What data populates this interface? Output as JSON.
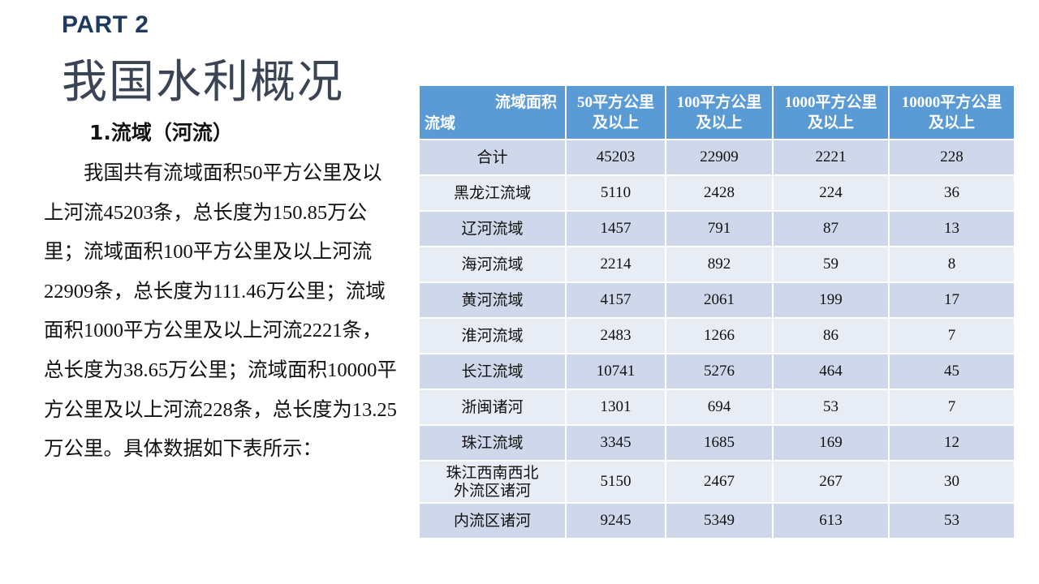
{
  "header": {
    "part_label": "PART 2",
    "title": "我国水利概况"
  },
  "section": {
    "heading": "1.流域（河流）",
    "paragraph": "我国共有流域面积50平方公里及以上河流45203条，总长度为150.85万公里；流域面积100平方公里及以上河流22909条，总长度为111.46万公里；流域面积1000平方公里及以上河流2221条，总长度为38.65万公里；流域面积10000平方公里及以上河流228条，总长度为13.25万公里。具体数据如下表所示："
  },
  "colors": {
    "header_bg": "#5b9bd5",
    "row_odd_bg": "#cfd7ea",
    "row_even_bg": "#e8ecf5",
    "part_label": "#1f3a5f",
    "title": "#3a4454"
  },
  "table": {
    "corner_top": "流域面积",
    "corner_bottom": "流域",
    "columns": [
      {
        "line1": "50平方公里",
        "line2": "及以上"
      },
      {
        "line1": "100平方公里",
        "line2": "及以上"
      },
      {
        "line1": "1000平方公里",
        "line2": "及以上"
      },
      {
        "line1": "10000平方公里",
        "line2": "及以上"
      }
    ],
    "rows": [
      {
        "name": "合计",
        "values": [
          "45203",
          "22909",
          "2221",
          "228"
        ]
      },
      {
        "name": "黑龙江流域",
        "values": [
          "5110",
          "2428",
          "224",
          "36"
        ]
      },
      {
        "name": "辽河流域",
        "values": [
          "1457",
          "791",
          "87",
          "13"
        ]
      },
      {
        "name": "海河流域",
        "values": [
          "2214",
          "892",
          "59",
          "8"
        ]
      },
      {
        "name": "黄河流域",
        "values": [
          "4157",
          "2061",
          "199",
          "17"
        ]
      },
      {
        "name": "淮河流域",
        "values": [
          "2483",
          "1266",
          "86",
          "7"
        ]
      },
      {
        "name": "长江流域",
        "values": [
          "10741",
          "5276",
          "464",
          "45"
        ]
      },
      {
        "name": "浙闽诸河",
        "values": [
          "1301",
          "694",
          "53",
          "7"
        ]
      },
      {
        "name": "珠江流域",
        "values": [
          "3345",
          "1685",
          "169",
          "12"
        ]
      },
      {
        "name_line1": "珠江西南西北",
        "name_line2": "外流区诸河",
        "values": [
          "5150",
          "2467",
          "267",
          "30"
        ]
      },
      {
        "name": "内流区诸河",
        "values": [
          "9245",
          "5349",
          "613",
          "53"
        ]
      }
    ]
  }
}
